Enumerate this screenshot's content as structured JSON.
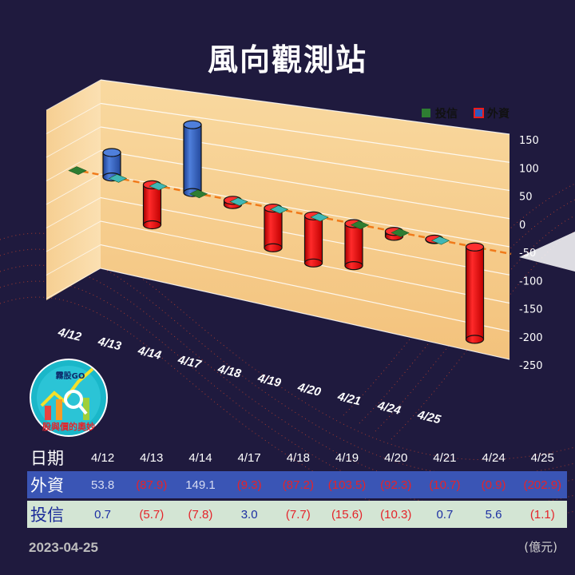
{
  "title": "風向觀測站",
  "chart_data": {
    "type": "bar",
    "categories": [
      "4/12",
      "4/13",
      "4/14",
      "4/17",
      "4/18",
      "4/19",
      "4/20",
      "4/21",
      "4/24",
      "4/25"
    ],
    "series": [
      {
        "name": "投信",
        "color": "#2e7d32",
        "values": [
          0.7,
          -5.7,
          -7.8,
          3.0,
          -7.7,
          -15.6,
          -10.3,
          0.7,
          5.6,
          -1.1
        ]
      },
      {
        "name": "外資",
        "color_pos": "#2e5bbf",
        "color_neg": "#ee1c1c",
        "values": [
          53.8,
          -87.9,
          149.1,
          -9.3,
          -87.2,
          -103.5,
          -92.3,
          -10.7,
          -0.9,
          -202.9
        ]
      }
    ],
    "ylim": [
      -250,
      150
    ],
    "ytick_labels": [
      "150",
      "100",
      "50",
      "0",
      "-50",
      "-100",
      "-150",
      "-200",
      "-250"
    ],
    "legend": [
      "投信",
      "外資"
    ],
    "legend_position": "top-right",
    "grid": true
  },
  "table": {
    "date_header": "日期",
    "dates": [
      "4/12",
      "4/13",
      "4/14",
      "4/17",
      "4/18",
      "4/19",
      "4/20",
      "4/21",
      "4/24",
      "4/25"
    ],
    "foreign_header": "外資",
    "foreign": [
      "53.8",
      "(87.9)",
      "149.1",
      "(9.3)",
      "(87.2)",
      "(103.5)",
      "(92.3)",
      "(10.7)",
      "(0.9)",
      "(202.9)"
    ],
    "trust_header": "投信",
    "trust": [
      "0.7",
      "(5.7)",
      "(7.8)",
      "3.0",
      "(7.7)",
      "(15.6)",
      "(10.3)",
      "0.7",
      "5.6",
      "(1.1)"
    ]
  },
  "footer_date": "2023-04-25",
  "unit": "(億元)",
  "logo": {
    "top_text": "霧股GO",
    "bottom_text": "股與價的奧妙",
    "icon": "magnifier-chart-logo"
  }
}
